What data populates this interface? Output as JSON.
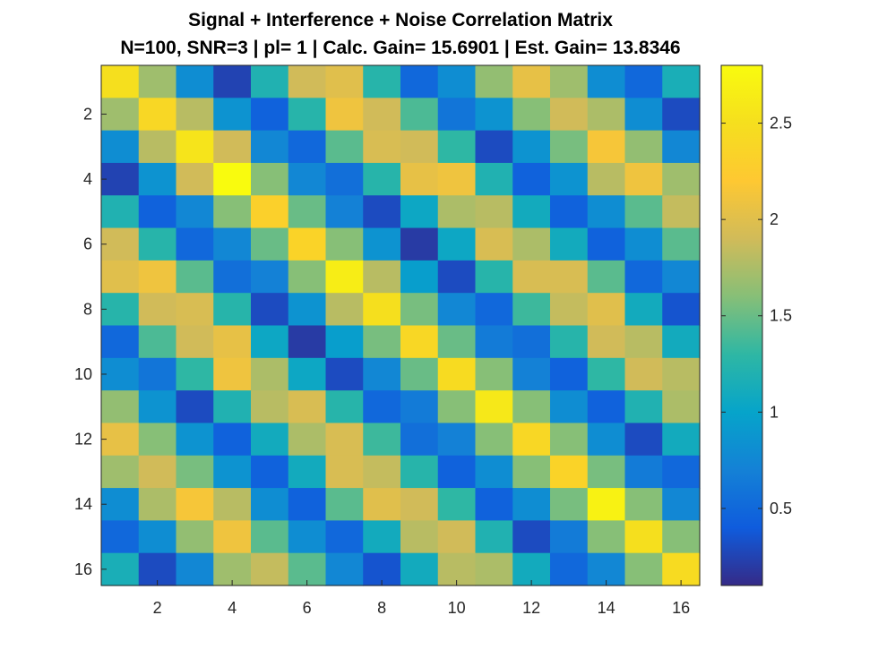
{
  "chart_data": {
    "type": "heatmap",
    "title": "Signal + Interference + Noise Correlation Matrix",
    "subtitle": "N=100, SNR=3 | pl= 1 | Calc. Gain= 15.6901 | Est. Gain= 13.8346",
    "xlabel": "",
    "ylabel": "",
    "rows": 16,
    "cols": 16,
    "xlim": [
      0.5,
      16.5
    ],
    "ylim": [
      0.5,
      16.5
    ],
    "y_direction": "reverse",
    "x_ticks": [
      2,
      4,
      6,
      8,
      10,
      12,
      14,
      16
    ],
    "y_ticks": [
      2,
      4,
      6,
      8,
      10,
      12,
      14,
      16
    ],
    "colormap": "parula",
    "clim": [
      0.1,
      2.8
    ],
    "colorbar": {
      "placement": "right",
      "ticks": [
        0.5,
        1,
        1.5,
        2,
        2.5
      ],
      "tick_labels": [
        "0.5",
        "1",
        "1.5",
        "2",
        "2.5"
      ]
    },
    "grid": false,
    "values": [
      [
        2.5,
        1.7,
        0.8,
        0.25,
        1.2,
        1.9,
        2.0,
        1.25,
        0.5,
        0.8,
        1.65,
        2.05,
        1.7,
        0.8,
        0.5,
        1.15
      ],
      [
        1.7,
        2.4,
        1.8,
        0.85,
        0.45,
        1.25,
        2.1,
        1.9,
        1.4,
        0.6,
        0.85,
        1.6,
        1.9,
        1.75,
        0.8,
        0.3
      ],
      [
        0.8,
        1.8,
        2.55,
        1.9,
        0.75,
        0.5,
        1.45,
        1.95,
        1.9,
        1.3,
        0.3,
        0.85,
        1.55,
        2.15,
        1.65,
        0.75
      ],
      [
        0.25,
        0.85,
        1.9,
        2.8,
        1.6,
        0.75,
        0.55,
        1.25,
        2.05,
        2.1,
        1.2,
        0.45,
        0.85,
        1.8,
        2.1,
        1.7
      ],
      [
        1.2,
        0.45,
        0.75,
        1.6,
        2.3,
        1.5,
        0.7,
        0.3,
        1.05,
        1.75,
        1.8,
        1.1,
        0.45,
        0.8,
        1.45,
        1.85
      ],
      [
        1.9,
        1.25,
        0.5,
        0.75,
        1.5,
        2.35,
        1.6,
        0.85,
        0.2,
        1.05,
        1.95,
        1.75,
        1.1,
        0.45,
        0.8,
        1.45
      ],
      [
        2.0,
        2.1,
        1.45,
        0.55,
        0.7,
        1.6,
        2.65,
        1.8,
        0.95,
        0.3,
        1.25,
        1.95,
        1.95,
        1.45,
        0.5,
        0.75
      ],
      [
        1.25,
        1.9,
        1.95,
        1.25,
        0.3,
        0.85,
        1.8,
        2.5,
        1.55,
        0.75,
        0.5,
        1.35,
        1.85,
        2.0,
        1.1,
        0.35
      ],
      [
        0.5,
        1.4,
        1.9,
        2.05,
        1.05,
        0.2,
        0.95,
        1.55,
        2.4,
        1.5,
        0.65,
        0.55,
        1.25,
        1.9,
        1.8,
        1.1
      ],
      [
        0.8,
        0.6,
        1.3,
        2.1,
        1.75,
        1.05,
        0.3,
        0.75,
        1.5,
        2.45,
        1.6,
        0.7,
        0.45,
        1.3,
        1.9,
        1.8
      ],
      [
        1.65,
        0.85,
        0.3,
        1.2,
        1.8,
        1.95,
        1.25,
        0.5,
        0.65,
        1.6,
        2.6,
        1.6,
        0.8,
        0.45,
        1.2,
        1.75
      ],
      [
        2.05,
        1.6,
        0.85,
        0.45,
        1.1,
        1.75,
        1.95,
        1.35,
        0.55,
        0.7,
        1.6,
        2.4,
        1.6,
        0.8,
        0.3,
        1.1
      ],
      [
        1.7,
        1.9,
        1.55,
        0.85,
        0.45,
        1.1,
        1.95,
        1.85,
        1.25,
        0.45,
        0.8,
        1.6,
        2.35,
        1.55,
        0.65,
        0.5
      ],
      [
        0.8,
        1.75,
        2.15,
        1.8,
        0.8,
        0.45,
        1.45,
        2.0,
        1.9,
        1.3,
        0.45,
        0.8,
        1.55,
        2.7,
        1.6,
        0.75
      ],
      [
        0.5,
        0.8,
        1.65,
        2.1,
        1.45,
        0.8,
        0.5,
        1.1,
        1.8,
        1.9,
        1.2,
        0.3,
        0.65,
        1.6,
        2.5,
        1.6
      ],
      [
        1.15,
        0.3,
        0.75,
        1.7,
        1.85,
        1.45,
        0.75,
        0.35,
        1.1,
        1.8,
        1.75,
        1.1,
        0.5,
        0.75,
        1.6,
        2.45
      ]
    ]
  }
}
